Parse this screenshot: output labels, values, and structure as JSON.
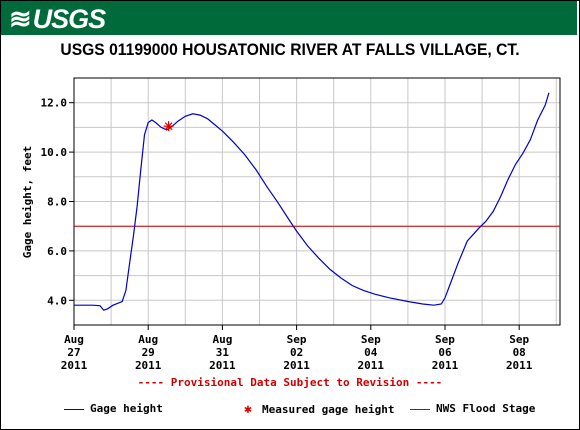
{
  "banner": {
    "logo_text": "USGS",
    "bg_color": "#006a3a"
  },
  "chart_data": {
    "type": "line",
    "title": "USGS 01199000 HOUSATONIC RIVER AT FALLS VILLAGE, CT.",
    "ylabel": "Gage height, feet",
    "xlabel": "",
    "ylim": [
      3.0,
      13.0
    ],
    "xlim": [
      0,
      13.1
    ],
    "yticks": [
      {
        "value": 4.0,
        "label": "4.0"
      },
      {
        "value": 6.0,
        "label": "6.0"
      },
      {
        "value": 8.0,
        "label": "8.0"
      },
      {
        "value": 10.0,
        "label": "10.0"
      },
      {
        "value": 12.0,
        "label": "12.0"
      }
    ],
    "xticks": [
      {
        "day": 0,
        "line1": "Aug",
        "line2": "27",
        "line3": "2011"
      },
      {
        "day": 2,
        "line1": "Aug",
        "line2": "29",
        "line3": "2011"
      },
      {
        "day": 4,
        "line1": "Aug",
        "line2": "31",
        "line3": "2011"
      },
      {
        "day": 6,
        "line1": "Sep",
        "line2": "02",
        "line3": "2011"
      },
      {
        "day": 8,
        "line1": "Sep",
        "line2": "04",
        "line3": "2011"
      },
      {
        "day": 10,
        "line1": "Sep",
        "line2": "06",
        "line3": "2011"
      },
      {
        "day": 12,
        "line1": "Sep",
        "line2": "08",
        "line3": "2011"
      }
    ],
    "grid": true,
    "series": [
      {
        "name": "Gage height",
        "color": "#0000cc",
        "points": [
          [
            0.0,
            3.8
          ],
          [
            0.5,
            3.8
          ],
          [
            0.7,
            3.78
          ],
          [
            0.8,
            3.6
          ],
          [
            0.9,
            3.65
          ],
          [
            1.05,
            3.8
          ],
          [
            1.3,
            3.95
          ],
          [
            1.4,
            4.4
          ],
          [
            1.5,
            5.5
          ],
          [
            1.6,
            6.6
          ],
          [
            1.7,
            7.8
          ],
          [
            1.8,
            9.3
          ],
          [
            1.9,
            10.7
          ],
          [
            2.0,
            11.2
          ],
          [
            2.1,
            11.3
          ],
          [
            2.2,
            11.2
          ],
          [
            2.35,
            11.0
          ],
          [
            2.5,
            10.9
          ],
          [
            2.65,
            11.05
          ],
          [
            2.8,
            11.25
          ],
          [
            3.0,
            11.45
          ],
          [
            3.2,
            11.55
          ],
          [
            3.4,
            11.5
          ],
          [
            3.6,
            11.35
          ],
          [
            3.8,
            11.1
          ],
          [
            4.0,
            10.85
          ],
          [
            4.3,
            10.4
          ],
          [
            4.6,
            9.9
          ],
          [
            4.9,
            9.3
          ],
          [
            5.2,
            8.6
          ],
          [
            5.5,
            7.95
          ],
          [
            5.8,
            7.25
          ],
          [
            6.0,
            6.8
          ],
          [
            6.3,
            6.2
          ],
          [
            6.6,
            5.7
          ],
          [
            6.9,
            5.25
          ],
          [
            7.2,
            4.9
          ],
          [
            7.5,
            4.6
          ],
          [
            7.8,
            4.4
          ],
          [
            8.1,
            4.25
          ],
          [
            8.5,
            4.1
          ],
          [
            9.0,
            3.95
          ],
          [
            9.4,
            3.85
          ],
          [
            9.7,
            3.8
          ],
          [
            9.9,
            3.85
          ],
          [
            10.0,
            4.1
          ],
          [
            10.15,
            4.7
          ],
          [
            10.35,
            5.5
          ],
          [
            10.6,
            6.4
          ],
          [
            10.9,
            6.9
          ],
          [
            11.1,
            7.2
          ],
          [
            11.3,
            7.6
          ],
          [
            11.5,
            8.2
          ],
          [
            11.7,
            8.9
          ],
          [
            11.9,
            9.5
          ],
          [
            12.1,
            9.95
          ],
          [
            12.3,
            10.5
          ],
          [
            12.5,
            11.3
          ],
          [
            12.7,
            11.9
          ],
          [
            12.8,
            12.4
          ]
        ]
      }
    ],
    "measured": [
      {
        "name": "Measured gage height",
        "day": 2.55,
        "value": 11.05,
        "color": "#e00000"
      }
    ],
    "flood_stage": {
      "name": "NWS Flood Stage",
      "value": 7.0,
      "color": "#cc0000"
    }
  },
  "provisional_note": "---- Provisional Data Subject to Revision ----",
  "legend": {
    "gage": "Gage height",
    "measured": "Measured gage height",
    "flood": "NWS Flood Stage"
  }
}
